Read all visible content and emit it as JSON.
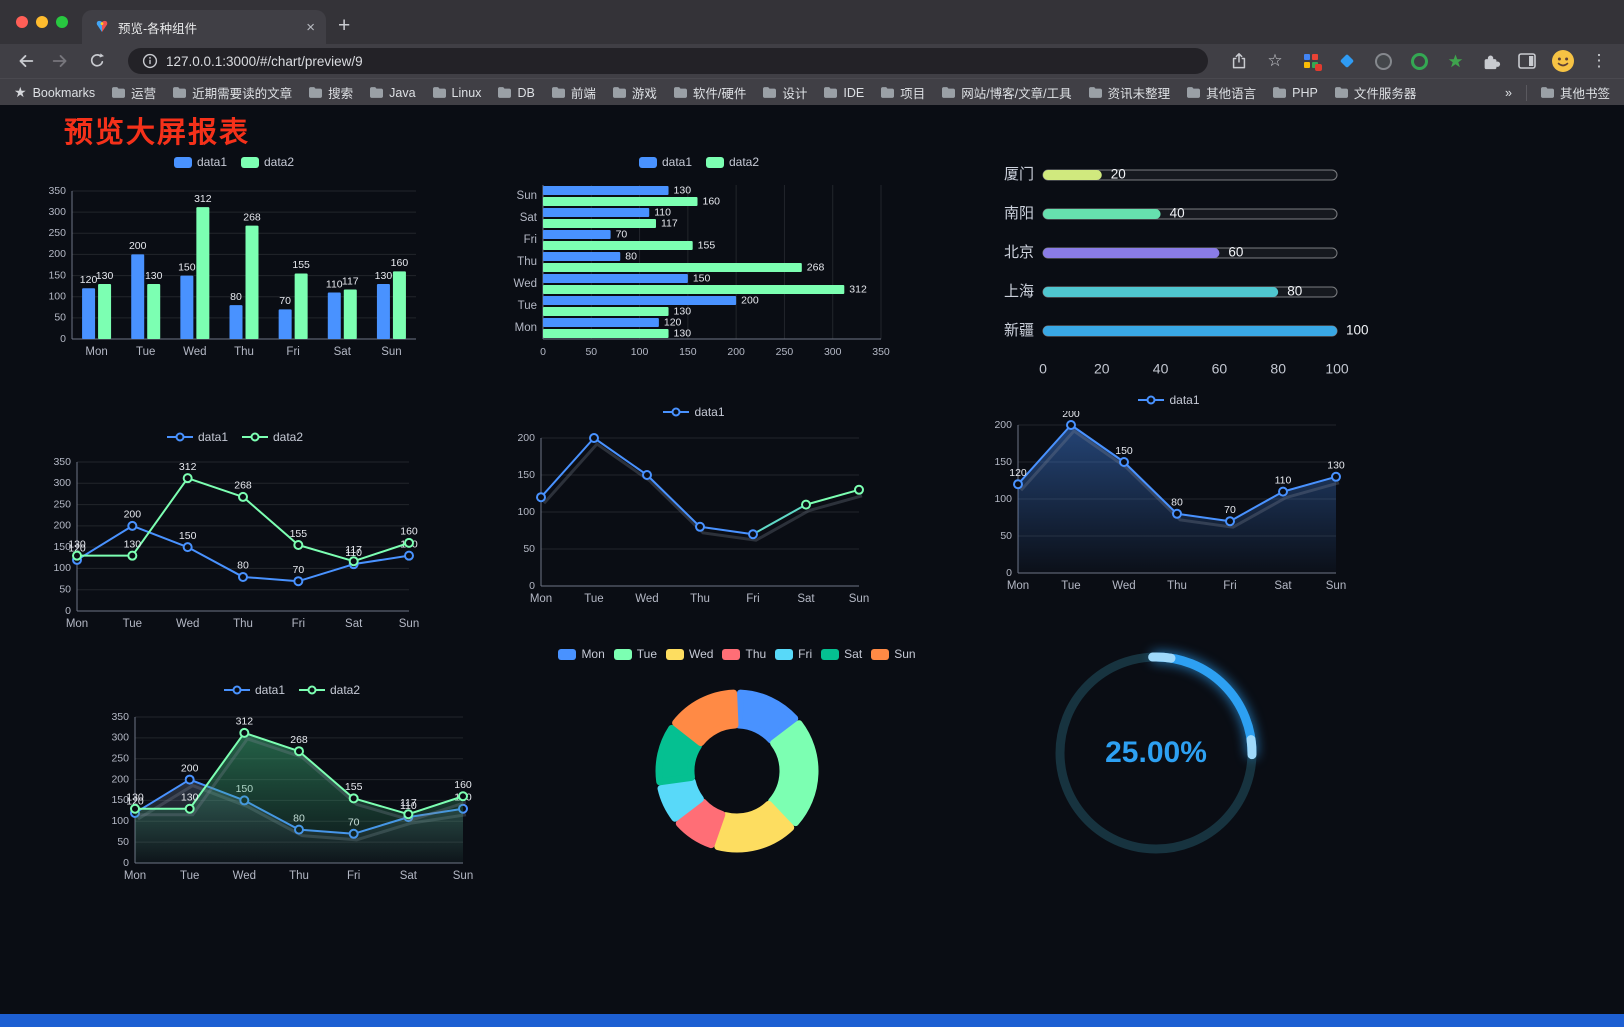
{
  "browser": {
    "tab_title": "预览-各种组件",
    "new_tab": "+",
    "close_tab": "×",
    "url": "127.0.0.1:3000/#/chart/preview/9",
    "bookmarks_label": "Bookmarks",
    "bookmark_folders": [
      "运营",
      "近期需要读的文章",
      "搜索",
      "Java",
      "Linux",
      "DB",
      "前端",
      "游戏",
      "软件/硬件",
      "设计",
      "IDE",
      "项目",
      "网站/博客/文章/工具",
      "资讯未整理",
      "其他语言",
      "PHP",
      "文件服务器"
    ],
    "overflow": "»",
    "other_bookmarks": "其他书签",
    "menu_dots": "⋮",
    "star": "☆"
  },
  "page": {
    "title": "预览大屏报表",
    "title_color": "#f5311a"
  },
  "chart_data": [
    {
      "id": "c1",
      "type": "bar",
      "categories": [
        "Mon",
        "Tue",
        "Wed",
        "Thu",
        "Fri",
        "Sat",
        "Sun"
      ],
      "ylim": [
        0,
        350
      ],
      "ystep": 50,
      "series": [
        {
          "name": "data1",
          "color": "#4992ff",
          "values": [
            120,
            200,
            150,
            80,
            70,
            110,
            130
          ],
          "labels": true
        },
        {
          "name": "data2",
          "color": "#7cffb2",
          "values": [
            130,
            130,
            312,
            268,
            155,
            117,
            160
          ],
          "labels": true
        }
      ]
    },
    {
      "id": "c2",
      "type": "hbar",
      "categories": [
        "Mon",
        "Tue",
        "Wed",
        "Thu",
        "Fri",
        "Sat",
        "Sun"
      ],
      "xlim": [
        0,
        350
      ],
      "xstep": 50,
      "series": [
        {
          "name": "data1",
          "color": "#4992ff",
          "values": [
            120,
            200,
            150,
            80,
            70,
            110,
            130
          ],
          "labels": true
        },
        {
          "name": "data2",
          "color": "#7cffb2",
          "values": [
            130,
            130,
            312,
            268,
            155,
            117,
            160
          ],
          "labels": true
        }
      ]
    },
    {
      "id": "c3",
      "type": "progress",
      "max": 100,
      "ticks": [
        0,
        20,
        40,
        60,
        80,
        100
      ],
      "items": [
        {
          "label": "厦门",
          "value": 20,
          "color": "#d0e97e"
        },
        {
          "label": "南阳",
          "value": 40,
          "color": "#66e0ae"
        },
        {
          "label": "北京",
          "value": 60,
          "color": "#8a7ce6"
        },
        {
          "label": "上海",
          "value": 80,
          "color": "#4fc6cf"
        },
        {
          "label": "新疆",
          "value": 100,
          "color": "#39a8e5"
        }
      ]
    },
    {
      "id": "c4",
      "type": "line",
      "categories": [
        "Mon",
        "Tue",
        "Wed",
        "Thu",
        "Fri",
        "Sat",
        "Sun"
      ],
      "ylim": [
        0,
        350
      ],
      "ystep": 50,
      "series": [
        {
          "name": "data1",
          "color": "#4992ff",
          "values": [
            120,
            200,
            150,
            80,
            70,
            110,
            130
          ],
          "labels": true
        },
        {
          "name": "data2",
          "color": "#7cffb2",
          "values": [
            130,
            130,
            312,
            268,
            155,
            117,
            160
          ],
          "labels": true
        }
      ]
    },
    {
      "id": "c5",
      "type": "line",
      "categories": [
        "Mon",
        "Tue",
        "Wed",
        "Thu",
        "Fri",
        "Sat",
        "Sun"
      ],
      "ylim": [
        0,
        200
      ],
      "ystep": 50,
      "series": [
        {
          "name": "data1",
          "color": "#4992ff",
          "values": [
            120,
            200,
            150,
            80,
            70,
            110,
            130
          ],
          "labels": false,
          "shadow": true,
          "segment_colors": [
            "#4992ff",
            "#4992ff",
            "#4992ff",
            "#4992ff",
            "#5fd8c6",
            "#7cffb2"
          ],
          "marker_colors": [
            "#4992ff",
            "#4992ff",
            "#4992ff",
            "#4992ff",
            "#4992ff",
            "#7cffb2",
            "#7cffb2"
          ]
        }
      ]
    },
    {
      "id": "c6",
      "type": "line",
      "categories": [
        "Mon",
        "Tue",
        "Wed",
        "Thu",
        "Fri",
        "Sat",
        "Sun"
      ],
      "ylim": [
        0,
        200
      ],
      "ystep": 50,
      "series": [
        {
          "name": "data1",
          "color": "#4992ff",
          "values": [
            120,
            200,
            150,
            80,
            70,
            110,
            130
          ],
          "labels": true,
          "shadow": true,
          "area": {
            "from": "rgba(73,146,255,0.42)",
            "to": "rgba(73,146,255,0.02)"
          }
        }
      ]
    },
    {
      "id": "c7",
      "type": "line",
      "categories": [
        "Mon",
        "Tue",
        "Wed",
        "Thu",
        "Fri",
        "Sat",
        "Sun"
      ],
      "ylim": [
        0,
        350
      ],
      "ystep": 50,
      "series": [
        {
          "name": "data1",
          "color": "#4992ff",
          "values": [
            120,
            200,
            150,
            80,
            70,
            110,
            130
          ],
          "labels": true,
          "shadow": true,
          "area": {
            "from": "rgba(115,135,165,0.30)",
            "to": "rgba(115,135,165,0.02)"
          }
        },
        {
          "name": "data2",
          "color": "#7cffb2",
          "values": [
            130,
            130,
            312,
            268,
            155,
            117,
            160
          ],
          "labels": true,
          "shadow": true,
          "area": {
            "from": "rgba(58,170,115,0.55)",
            "to": "rgba(58,170,115,0.03)"
          }
        }
      ]
    },
    {
      "id": "c8",
      "type": "donut",
      "categories": [
        "Mon",
        "Tue",
        "Wed",
        "Thu",
        "Fri",
        "Sat",
        "Sun"
      ],
      "values": [
        120,
        200,
        150,
        80,
        70,
        110,
        130
      ],
      "colors": [
        "#4992ff",
        "#7cffb2",
        "#fddd60",
        "#ff6e76",
        "#58d9f9",
        "#05c091",
        "#ff8a45"
      ]
    },
    {
      "id": "c9",
      "type": "gauge",
      "value": 25,
      "max": 100,
      "text": "25.00%",
      "color": "#2da0f2",
      "track_color": "#17333f",
      "tip_color": "#9fd9fb"
    }
  ]
}
